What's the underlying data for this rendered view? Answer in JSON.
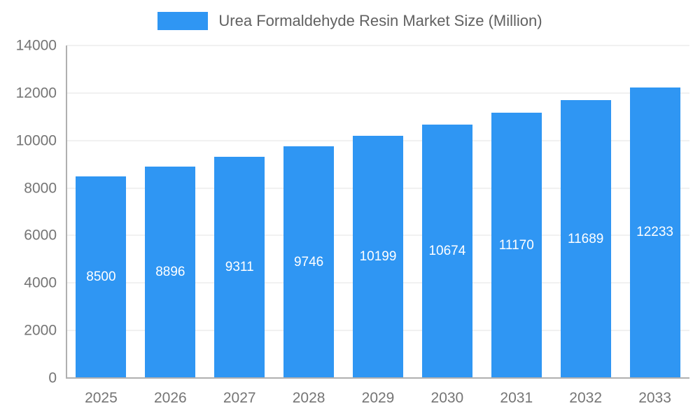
{
  "chart_data": {
    "type": "bar",
    "title": "Urea Formaldehyde Resin Market Size (Million)",
    "categories": [
      "2025",
      "2026",
      "2027",
      "2028",
      "2029",
      "2030",
      "2031",
      "2032",
      "2033"
    ],
    "values": [
      8500,
      8896,
      9311,
      9746,
      10199,
      10674,
      11170,
      11689,
      12233
    ],
    "xlabel": "",
    "ylabel": "",
    "ylim": [
      0,
      14000
    ],
    "yticks": [
      0,
      2000,
      4000,
      6000,
      8000,
      10000,
      12000,
      14000
    ],
    "grid": true,
    "legend_position": "top",
    "colors": {
      "bar": "#2F96F3",
      "bar_label": "#ffffff",
      "axis_text": "#757575",
      "legend_text": "#616161",
      "grid": "#e3e3e3",
      "axis_line": "#b0b0b0"
    }
  }
}
